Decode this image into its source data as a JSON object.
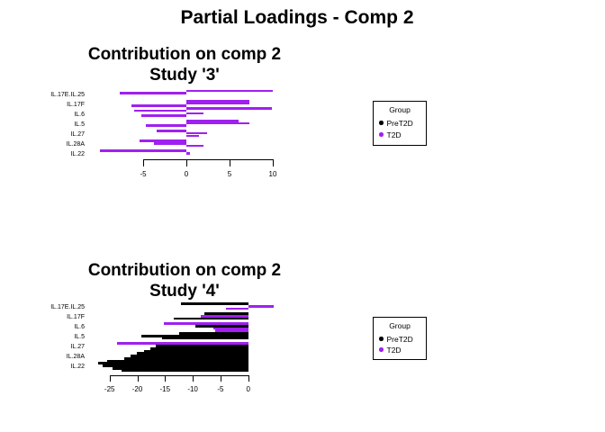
{
  "main_title": "Partial Loadings - Comp 2",
  "legend": {
    "title": "Group",
    "entries": [
      {
        "label": "PreT2D",
        "color": "#000000"
      },
      {
        "label": "T2D",
        "color": "#A020F0"
      }
    ]
  },
  "chart_data": [
    {
      "type": "bar",
      "orientation": "horizontal",
      "title": "Contribution on comp 2",
      "subtitle": "Study '3'",
      "xlabel": "",
      "ylabel": "",
      "x_ticks": [
        -5,
        0,
        5,
        10
      ],
      "xlim": [
        -10.5,
        10.5
      ],
      "grid": false,
      "legend_position": "right",
      "categories": [
        "IL.17E.IL.25",
        "IL.17F",
        "IL.6",
        "IL.5",
        "IL.27",
        "IL.28A",
        "IL.22"
      ],
      "bars": [
        {
          "category": "IL.17E.IL.25",
          "samples": [
            {
              "v": 10.0,
              "group": "T2D"
            },
            {
              "v": -7.7,
              "group": "T2D"
            }
          ]
        },
        {
          "category": "IL.17F",
          "samples": [
            {
              "v": 7.3,
              "group": "T2D"
            },
            {
              "v": 7.3,
              "group": "T2D"
            },
            {
              "v": -6.4,
              "group": "T2D"
            },
            {
              "v": 9.9,
              "group": "T2D"
            }
          ]
        },
        {
          "category": "IL.6",
          "samples": [
            {
              "v": -6.0,
              "group": "T2D"
            },
            {
              "v": 2.0,
              "group": "T2D"
            },
            {
              "v": -5.2,
              "group": "T2D"
            }
          ]
        },
        {
          "category": "IL.5",
          "samples": [
            {
              "v": 6.0,
              "group": "T2D"
            },
            {
              "v": 7.3,
              "group": "T2D"
            },
            {
              "v": -4.7,
              "group": "T2D"
            }
          ]
        },
        {
          "category": "IL.27",
          "samples": [
            {
              "v": -3.4,
              "group": "T2D"
            },
            {
              "v": 2.4,
              "group": "T2D"
            },
            {
              "v": 1.5,
              "group": "T2D"
            }
          ]
        },
        {
          "category": "IL.28A",
          "samples": [
            {
              "v": -5.4,
              "group": "T2D"
            },
            {
              "v": -3.8,
              "group": "T2D"
            },
            {
              "v": 2.0,
              "group": "T2D"
            }
          ]
        },
        {
          "category": "IL.22",
          "samples": [
            {
              "v": -10.0,
              "group": "T2D"
            },
            {
              "v": 0.4,
              "group": "T2D"
            }
          ]
        }
      ]
    },
    {
      "type": "bar",
      "orientation": "horizontal",
      "title": "Contribution on comp 2",
      "subtitle": "Study '4'",
      "xlabel": "",
      "ylabel": "",
      "x_ticks": [
        -25,
        -20,
        -15,
        -10,
        -5,
        0
      ],
      "xlim": [
        -28,
        5
      ],
      "grid": false,
      "legend_position": "right",
      "categories": [
        "IL.17E.IL.25",
        "IL.17F",
        "IL.6",
        "IL.5",
        "IL.27",
        "IL.28A",
        "IL.22"
      ],
      "bars": [
        {
          "category": "IL.17E.IL.25",
          "samples": [
            {
              "v": -12.1,
              "group": "PreT2D"
            },
            {
              "v": 4.6,
              "group": "T2D"
            },
            {
              "v": -4.0,
              "group": "T2D"
            }
          ]
        },
        {
          "category": "IL.17F",
          "samples": [
            {
              "v": -7.9,
              "group": "PreT2D"
            },
            {
              "v": -8.6,
              "group": "T2D"
            },
            {
              "v": -13.5,
              "group": "PreT2D"
            }
          ]
        },
        {
          "category": "IL.6",
          "samples": [
            {
              "v": -15.2,
              "group": "T2D"
            },
            {
              "v": -9.6,
              "group": "PreT2D"
            },
            {
              "v": -6.3,
              "group": "T2D"
            },
            {
              "v": -6.0,
              "group": "T2D"
            }
          ]
        },
        {
          "category": "IL.5",
          "samples": [
            {
              "v": -12.5,
              "group": "PreT2D"
            },
            {
              "v": -19.3,
              "group": "PreT2D"
            },
            {
              "v": -15.5,
              "group": "PreT2D"
            }
          ]
        },
        {
          "category": "IL.27",
          "samples": [
            {
              "v": -23.6,
              "group": "T2D"
            },
            {
              "v": -16.6,
              "group": "PreT2D"
            },
            {
              "v": -17.7,
              "group": "PreT2D"
            },
            {
              "v": -18.8,
              "group": "PreT2D"
            }
          ]
        },
        {
          "category": "IL.28A",
          "samples": [
            {
              "v": -20.1,
              "group": "PreT2D"
            },
            {
              "v": -21.2,
              "group": "PreT2D"
            },
            {
              "v": -22.3,
              "group": "PreT2D"
            },
            {
              "v": -25.5,
              "group": "PreT2D"
            }
          ]
        },
        {
          "category": "IL.22",
          "samples": [
            {
              "v": -27.1,
              "group": "PreT2D"
            },
            {
              "v": -26.2,
              "group": "PreT2D"
            },
            {
              "v": -24.4,
              "group": "PreT2D"
            },
            {
              "v": -22.9,
              "group": "PreT2D"
            }
          ]
        }
      ]
    }
  ]
}
